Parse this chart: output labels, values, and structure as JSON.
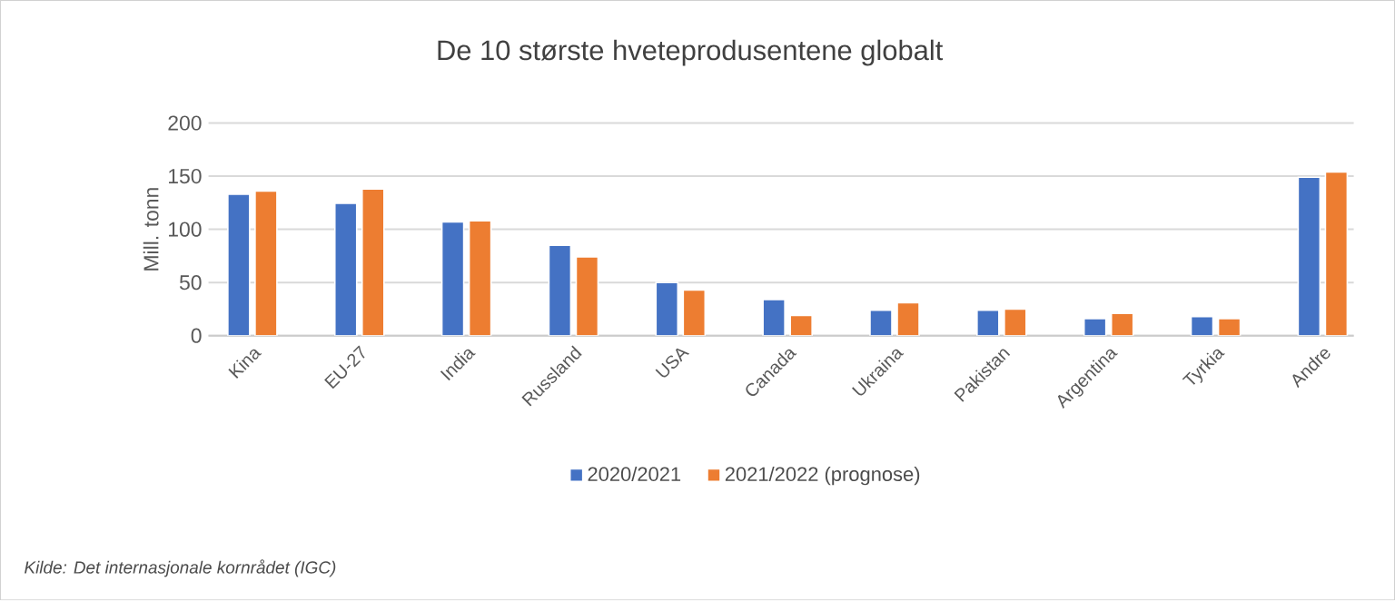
{
  "chart_data": {
    "type": "bar",
    "title": "De 10 største hveteprodusentene globalt",
    "ylabel": "Mill. tonn",
    "categories": [
      "Kina",
      "EU-27",
      "India",
      "Russland",
      "USA",
      "Canada",
      "Ukraina",
      "Pakistan",
      "Argentina",
      "Tyrkia",
      "Andre"
    ],
    "series": [
      {
        "name": "2020/2021",
        "color": "#4472c4",
        "values": [
          133,
          124.5,
          107,
          85,
          50,
          34,
          24,
          24,
          16,
          18,
          149
        ]
      },
      {
        "name": "2021/2022 (prognose)",
        "color": "#ed7d31",
        "values": [
          136,
          138,
          108,
          74,
          43,
          19,
          31,
          25,
          21,
          16,
          154
        ]
      }
    ],
    "ylim": [
      0,
      200
    ],
    "yticks": [
      0,
      50,
      100,
      150,
      200
    ],
    "grid": "y",
    "legend": "bottom",
    "annotations": [
      "Kilde: Det internasjonale kornrådet (IGC)"
    ]
  }
}
